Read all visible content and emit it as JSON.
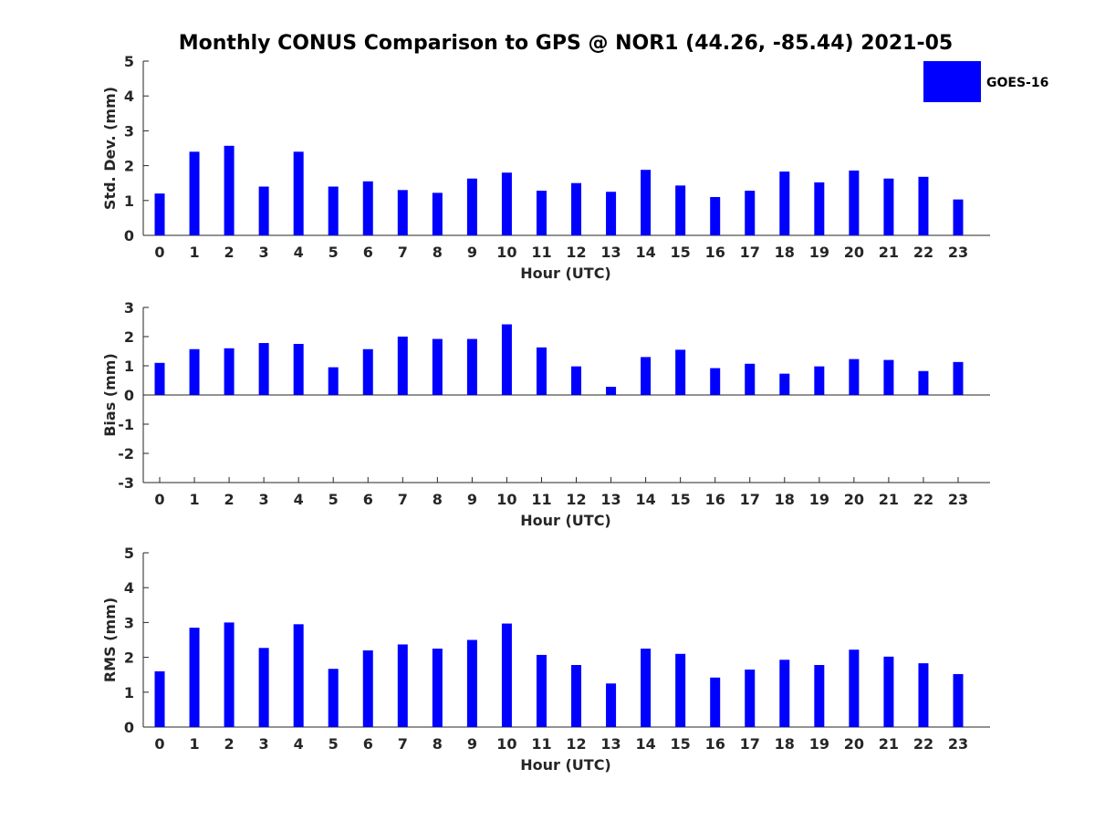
{
  "chart_data": [
    {
      "type": "bar",
      "title": "Monthly CONUS Comparison to GPS @ NOR1 (44.26, -85.44) 2021-05",
      "xlabel": "Hour (UTC)",
      "ylabel": "Std. Dev. (mm)",
      "ylim": [
        0,
        5
      ],
      "yticks": [
        "0",
        "1",
        "2",
        "3",
        "4",
        "5"
      ],
      "categories": [
        "0",
        "1",
        "2",
        "3",
        "4",
        "5",
        "6",
        "7",
        "8",
        "9",
        "10",
        "11",
        "12",
        "13",
        "14",
        "15",
        "16",
        "17",
        "18",
        "19",
        "20",
        "21",
        "22",
        "23"
      ],
      "series": [
        {
          "name": "GOES-16",
          "values": [
            1.2,
            2.4,
            2.57,
            1.4,
            2.4,
            1.4,
            1.55,
            1.3,
            1.22,
            1.63,
            1.8,
            1.28,
            1.5,
            1.25,
            1.88,
            1.43,
            1.1,
            1.28,
            1.83,
            1.52,
            1.86,
            1.63,
            1.68,
            1.03
          ]
        }
      ],
      "legend": "top-right",
      "bar_color": "#0000ff"
    },
    {
      "type": "bar",
      "xlabel": "Hour (UTC)",
      "ylabel": "Bias (mm)",
      "ylim": [
        -3,
        3
      ],
      "yticks": [
        "-3",
        "-2",
        "-1",
        "0",
        "1",
        "2",
        "3"
      ],
      "categories": [
        "0",
        "1",
        "2",
        "3",
        "4",
        "5",
        "6",
        "7",
        "8",
        "9",
        "10",
        "11",
        "12",
        "13",
        "14",
        "15",
        "16",
        "17",
        "18",
        "19",
        "20",
        "21",
        "22",
        "23"
      ],
      "series": [
        {
          "name": "GOES-16",
          "values": [
            1.1,
            1.57,
            1.6,
            1.78,
            1.75,
            0.95,
            1.57,
            2.0,
            1.92,
            1.92,
            2.42,
            1.63,
            0.98,
            0.28,
            1.3,
            1.55,
            0.92,
            1.07,
            0.73,
            0.98,
            1.23,
            1.2,
            0.82,
            1.13
          ]
        }
      ],
      "bar_color": "#0000ff"
    },
    {
      "type": "bar",
      "xlabel": "Hour (UTC)",
      "ylabel": "RMS (mm)",
      "ylim": [
        0,
        5
      ],
      "yticks": [
        "0",
        "1",
        "2",
        "3",
        "4",
        "5"
      ],
      "categories": [
        "0",
        "1",
        "2",
        "3",
        "4",
        "5",
        "6",
        "7",
        "8",
        "9",
        "10",
        "11",
        "12",
        "13",
        "14",
        "15",
        "16",
        "17",
        "18",
        "19",
        "20",
        "21",
        "22",
        "23"
      ],
      "series": [
        {
          "name": "GOES-16",
          "values": [
            1.6,
            2.85,
            3.0,
            2.27,
            2.95,
            1.67,
            2.2,
            2.37,
            2.25,
            2.5,
            2.97,
            2.07,
            1.78,
            1.25,
            2.25,
            2.1,
            1.42,
            1.65,
            1.93,
            1.78,
            2.22,
            2.02,
            1.83,
            1.52
          ]
        }
      ],
      "bar_color": "#0000ff"
    }
  ],
  "legend": {
    "label": "GOES-16",
    "color": "#0000ff"
  }
}
